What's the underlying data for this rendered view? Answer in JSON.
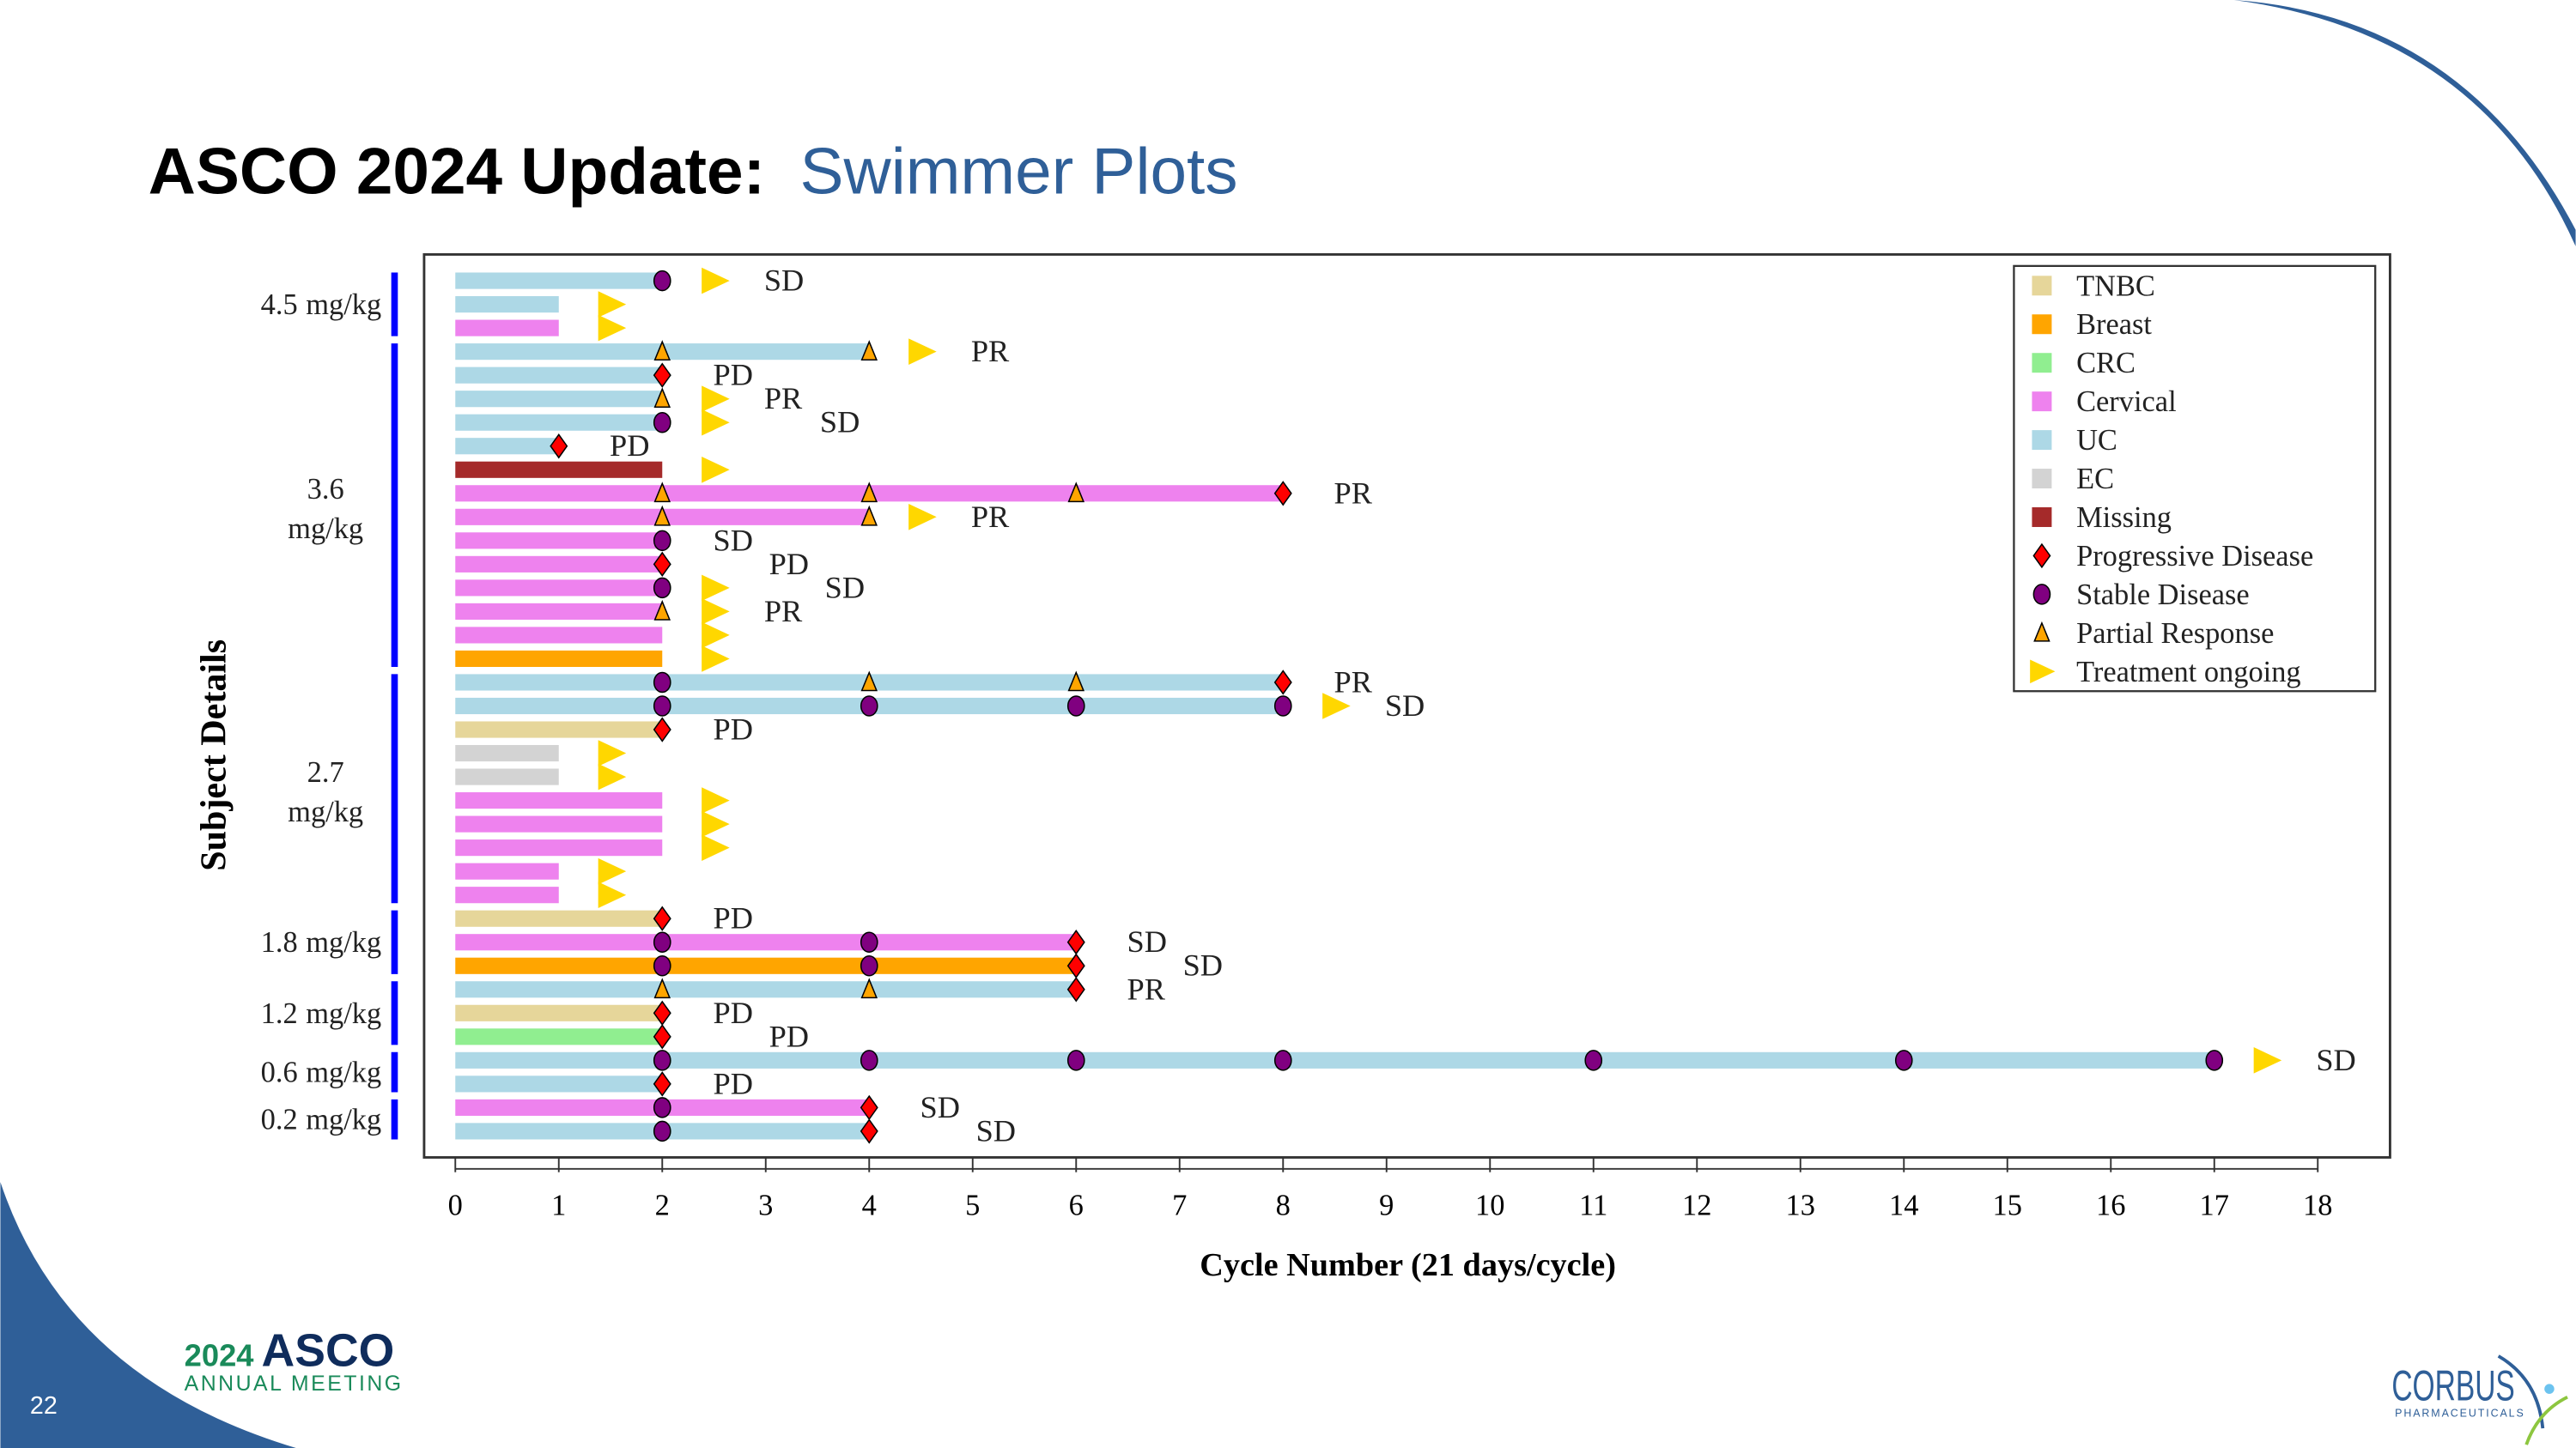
{
  "slide": {
    "title_bold": "ASCO 2024 Update:",
    "title_accent": "Swimmer Plots",
    "page_number": "22",
    "accent_color": "#2f5f98",
    "logo_left": {
      "year": "2024",
      "name": "ASCO",
      "sub": "ANNUAL MEETING"
    },
    "logo_right": {
      "name": "CORBUS",
      "sub": "PHARMACEUTICALS"
    }
  },
  "chart_data": {
    "type": "swimmer",
    "xlabel": "Cycle Number (21 days/cycle)",
    "ylabel": "Subject Details",
    "xlim": [
      0,
      18
    ],
    "x_ticks": [
      0,
      1,
      2,
      3,
      4,
      5,
      6,
      7,
      8,
      9,
      10,
      11,
      12,
      13,
      14,
      15,
      16,
      17,
      18
    ],
    "legend_position": "top-right",
    "cancer_types": [
      {
        "name": "TNBC",
        "color": "#e6d69a"
      },
      {
        "name": "Breast",
        "color": "#ffa500"
      },
      {
        "name": "CRC",
        "color": "#90ee90"
      },
      {
        "name": "Cervical",
        "color": "#ee82ee"
      },
      {
        "name": "UC",
        "color": "#add8e6"
      },
      {
        "name": "EC",
        "color": "#d3d3d3"
      },
      {
        "name": "Missing",
        "color": "#a52a2a"
      }
    ],
    "marker_types": [
      {
        "code": "PD",
        "name": "Progressive Disease",
        "shape": "diamond",
        "color": "#ff0000"
      },
      {
        "code": "SD",
        "name": "Stable Disease",
        "shape": "circle",
        "color": "#800080"
      },
      {
        "code": "PR",
        "name": "Partial Response",
        "shape": "triangle",
        "color": "#ffa500"
      },
      {
        "code": "ONGOING",
        "name": "Treatment ongoing",
        "shape": "arrow",
        "color": "#ffd700"
      }
    ],
    "dose_groups": [
      {
        "dose": "4.5",
        "unit": "mg/kg",
        "first_row": 1,
        "last_row": 3
      },
      {
        "dose": "3.6",
        "unit": "mg/kg",
        "first_row": 4,
        "last_row": 17
      },
      {
        "dose": "2.7",
        "unit": "mg/kg",
        "first_row": 18,
        "last_row": 27
      },
      {
        "dose": "1.8",
        "unit": "mg/kg",
        "first_row": 28,
        "last_row": 30
      },
      {
        "dose": "1.2",
        "unit": "mg/kg",
        "first_row": 31,
        "last_row": 33
      },
      {
        "dose": "0.6",
        "unit": "mg/kg",
        "first_row": 34,
        "last_row": 35
      },
      {
        "dose": "0.2",
        "unit": "mg/kg",
        "first_row": 36,
        "last_row": 37
      }
    ],
    "subjects": [
      {
        "cancer": "UC",
        "end": 2,
        "markers": [
          [
            2,
            "SD"
          ]
        ],
        "ongoing": true,
        "label": "SD"
      },
      {
        "cancer": "UC",
        "end": 1,
        "markers": [],
        "ongoing": true,
        "label": ""
      },
      {
        "cancer": "Cervical",
        "end": 1,
        "markers": [],
        "ongoing": true,
        "label": ""
      },
      {
        "cancer": "UC",
        "end": 4,
        "markers": [
          [
            2,
            "PR"
          ],
          [
            4,
            "PR"
          ]
        ],
        "ongoing": true,
        "label": "PR"
      },
      {
        "cancer": "UC",
        "end": 2,
        "markers": [
          [
            2,
            "PD"
          ]
        ],
        "ongoing": false,
        "label": "PD"
      },
      {
        "cancer": "UC",
        "end": 2,
        "markers": [
          [
            2,
            "PR"
          ]
        ],
        "ongoing": true,
        "label": "PR"
      },
      {
        "cancer": "UC",
        "end": 2,
        "markers": [
          [
            2,
            "SD"
          ]
        ],
        "ongoing": true,
        "label": "SD"
      },
      {
        "cancer": "UC",
        "end": 1,
        "markers": [
          [
            1,
            "PD"
          ]
        ],
        "ongoing": false,
        "label": "PD"
      },
      {
        "cancer": "Missing",
        "end": 2,
        "markers": [],
        "ongoing": true,
        "label": ""
      },
      {
        "cancer": "Cervical",
        "end": 8,
        "markers": [
          [
            2,
            "PR"
          ],
          [
            4,
            "PR"
          ],
          [
            6,
            "PR"
          ],
          [
            8,
            "PD"
          ]
        ],
        "ongoing": false,
        "label": "PR"
      },
      {
        "cancer": "Cervical",
        "end": 4,
        "markers": [
          [
            2,
            "PR"
          ],
          [
            4,
            "PR"
          ]
        ],
        "ongoing": true,
        "label": "PR"
      },
      {
        "cancer": "Cervical",
        "end": 2,
        "markers": [
          [
            2,
            "SD"
          ]
        ],
        "ongoing": false,
        "label": "SD"
      },
      {
        "cancer": "Cervical",
        "end": 2,
        "markers": [
          [
            2,
            "PD"
          ]
        ],
        "ongoing": false,
        "label": "PD"
      },
      {
        "cancer": "Cervical",
        "end": 2,
        "markers": [
          [
            2,
            "SD"
          ]
        ],
        "ongoing": true,
        "label": "SD"
      },
      {
        "cancer": "Cervical",
        "end": 2,
        "markers": [
          [
            2,
            "PR"
          ]
        ],
        "ongoing": true,
        "label": "PR"
      },
      {
        "cancer": "Cervical",
        "end": 2,
        "markers": [],
        "ongoing": true,
        "label": ""
      },
      {
        "cancer": "Breast",
        "end": 2,
        "markers": [],
        "ongoing": true,
        "label": ""
      },
      {
        "cancer": "UC",
        "end": 8,
        "markers": [
          [
            2,
            "SD"
          ],
          [
            4,
            "PR"
          ],
          [
            6,
            "PR"
          ],
          [
            8,
            "PD"
          ]
        ],
        "ongoing": false,
        "label": "PR"
      },
      {
        "cancer": "UC",
        "end": 8,
        "markers": [
          [
            2,
            "SD"
          ],
          [
            4,
            "SD"
          ],
          [
            6,
            "SD"
          ],
          [
            8,
            "SD"
          ]
        ],
        "ongoing": true,
        "label": "SD"
      },
      {
        "cancer": "TNBC",
        "end": 2,
        "markers": [
          [
            2,
            "PD"
          ]
        ],
        "ongoing": false,
        "label": "PD"
      },
      {
        "cancer": "EC",
        "end": 1,
        "markers": [],
        "ongoing": true,
        "label": ""
      },
      {
        "cancer": "EC",
        "end": 1,
        "markers": [],
        "ongoing": true,
        "label": ""
      },
      {
        "cancer": "Cervical",
        "end": 2,
        "markers": [],
        "ongoing": true,
        "label": ""
      },
      {
        "cancer": "Cervical",
        "end": 2,
        "markers": [],
        "ongoing": true,
        "label": ""
      },
      {
        "cancer": "Cervical",
        "end": 2,
        "markers": [],
        "ongoing": true,
        "label": ""
      },
      {
        "cancer": "Cervical",
        "end": 1,
        "markers": [],
        "ongoing": true,
        "label": ""
      },
      {
        "cancer": "Cervical",
        "end": 1,
        "markers": [],
        "ongoing": true,
        "label": ""
      },
      {
        "cancer": "TNBC",
        "end": 2,
        "markers": [
          [
            2,
            "PD"
          ]
        ],
        "ongoing": false,
        "label": "PD"
      },
      {
        "cancer": "Cervical",
        "end": 6,
        "markers": [
          [
            2,
            "SD"
          ],
          [
            4,
            "SD"
          ],
          [
            6,
            "PD"
          ]
        ],
        "ongoing": false,
        "label": "SD"
      },
      {
        "cancer": "Breast",
        "end": 6,
        "markers": [
          [
            2,
            "SD"
          ],
          [
            4,
            "SD"
          ],
          [
            6,
            "PD"
          ]
        ],
        "ongoing": false,
        "label": "SD"
      },
      {
        "cancer": "UC",
        "end": 6,
        "markers": [
          [
            2,
            "PR"
          ],
          [
            4,
            "PR"
          ],
          [
            6,
            "PD"
          ]
        ],
        "ongoing": false,
        "label": "PR"
      },
      {
        "cancer": "TNBC",
        "end": 2,
        "markers": [
          [
            2,
            "PD"
          ]
        ],
        "ongoing": false,
        "label": "PD"
      },
      {
        "cancer": "CRC",
        "end": 2,
        "markers": [
          [
            2,
            "PD"
          ]
        ],
        "ongoing": false,
        "label": "PD"
      },
      {
        "cancer": "UC",
        "end": 17,
        "markers": [
          [
            2,
            "SD"
          ],
          [
            4,
            "SD"
          ],
          [
            6,
            "SD"
          ],
          [
            8,
            "SD"
          ],
          [
            11,
            "SD"
          ],
          [
            14,
            "SD"
          ],
          [
            17,
            "SD"
          ]
        ],
        "ongoing": true,
        "label": "SD"
      },
      {
        "cancer": "UC",
        "end": 2,
        "markers": [
          [
            2,
            "PD"
          ]
        ],
        "ongoing": false,
        "label": "PD"
      },
      {
        "cancer": "Cervical",
        "end": 4,
        "markers": [
          [
            2,
            "SD"
          ],
          [
            4,
            "PD"
          ]
        ],
        "ongoing": false,
        "label": "SD"
      },
      {
        "cancer": "UC",
        "end": 4,
        "markers": [
          [
            2,
            "SD"
          ],
          [
            4,
            "PD"
          ]
        ],
        "ongoing": false,
        "label": "SD"
      }
    ]
  }
}
